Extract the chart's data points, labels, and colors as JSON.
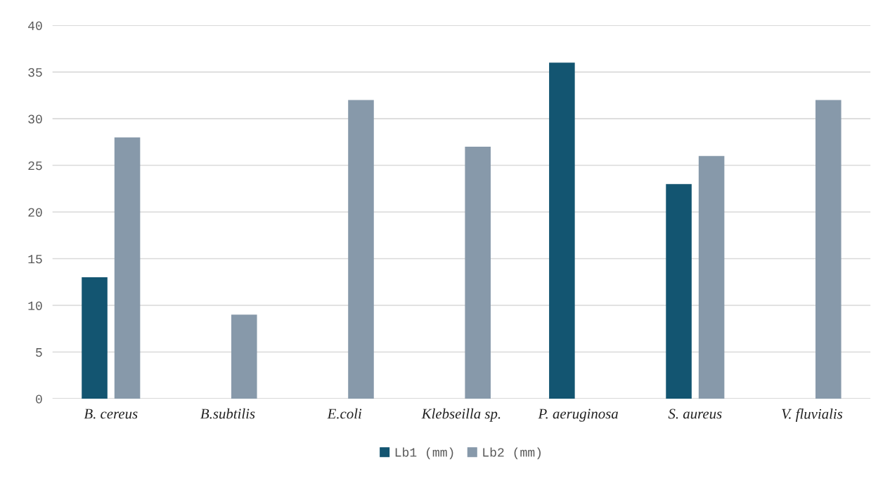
{
  "chart_data": {
    "type": "bar",
    "categories": [
      "B. cereus",
      "B.subtilis",
      "E.coli",
      "Klebseilla sp.",
      "P. aeruginosa",
      "S. aureus",
      "V. fluvialis"
    ],
    "series": [
      {
        "name": "Lb1 (mm)",
        "color": "#135571",
        "values": [
          13,
          null,
          null,
          null,
          36,
          23,
          null
        ]
      },
      {
        "name": "Lb2 (mm)",
        "color": "#8799aa",
        "values": [
          28,
          9,
          32,
          27,
          null,
          26,
          32
        ]
      }
    ],
    "ylim": [
      0,
      40
    ],
    "yticks": [
      0,
      5,
      10,
      15,
      20,
      25,
      30,
      35,
      40
    ],
    "grid": "y",
    "legend": "bottom"
  }
}
